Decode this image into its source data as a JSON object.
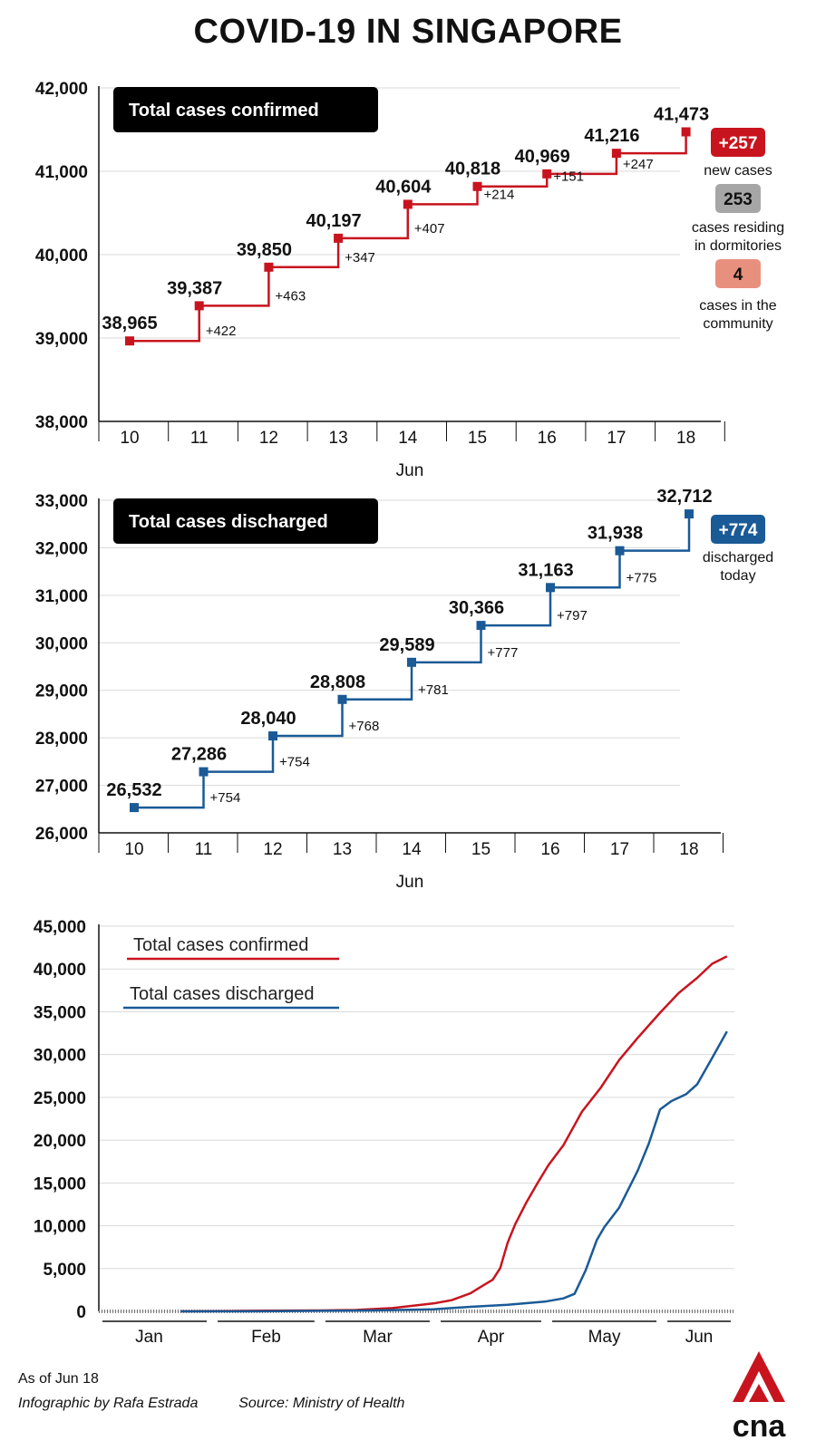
{
  "title": "COVID-19 IN SINGAPORE",
  "colors": {
    "confirmed": "#c8141e",
    "discharged": "#1a5a96",
    "community_badge": "#e8907e",
    "dorm_badge": "#a6a6a6"
  },
  "chart_data": [
    {
      "type": "line",
      "step": true,
      "title": "Total cases confirmed",
      "xlabel": "Jun",
      "categories": [
        "10",
        "11",
        "12",
        "13",
        "14",
        "15",
        "16",
        "17",
        "18"
      ],
      "values": [
        38965,
        39387,
        39850,
        40197,
        40604,
        40818,
        40969,
        41216,
        41473
      ],
      "value_labels": [
        "38,965",
        "39,387",
        "39,850",
        "40,197",
        "40,604",
        "40,818",
        "40,969",
        "41,216",
        "41,473"
      ],
      "increments": [
        "+422",
        "+463",
        "+347",
        "+407",
        "+214",
        "+151",
        "+247"
      ],
      "ylim": [
        38000,
        42000
      ],
      "yticks": [
        38000,
        39000,
        40000,
        41000,
        42000
      ],
      "ytick_labels": [
        "38,000",
        "39,000",
        "40,000",
        "41,000",
        "42,000"
      ],
      "annotations": [
        {
          "badge": "+257",
          "text": "new cases"
        },
        {
          "badge": "253",
          "text": "cases residing in dormitories"
        },
        {
          "badge": "4",
          "text": "cases in the community"
        }
      ]
    },
    {
      "type": "line",
      "step": true,
      "title": "Total cases discharged",
      "xlabel": "Jun",
      "categories": [
        "10",
        "11",
        "12",
        "13",
        "14",
        "15",
        "16",
        "17",
        "18"
      ],
      "values": [
        26532,
        27286,
        28040,
        28808,
        29589,
        30366,
        31163,
        31938,
        32712
      ],
      "value_labels": [
        "26,532",
        "27,286",
        "28,040",
        "28,808",
        "29,589",
        "30,366",
        "31,163",
        "31,938",
        "32,712"
      ],
      "increments": [
        "+754",
        "+754",
        "+768",
        "+781",
        "+777",
        "+797",
        "+775"
      ],
      "ylim": [
        26000,
        33000
      ],
      "yticks": [
        26000,
        27000,
        28000,
        29000,
        30000,
        31000,
        32000,
        33000
      ],
      "ytick_labels": [
        "26,000",
        "27,000",
        "28,000",
        "29,000",
        "30,000",
        "31,000",
        "32,000",
        "33,000"
      ],
      "annotations": [
        {
          "badge": "+774",
          "text": "discharged today"
        }
      ]
    },
    {
      "type": "line",
      "categories": [
        "Jan",
        "Feb",
        "Mar",
        "Apr",
        "May",
        "Jun"
      ],
      "ylim": [
        0,
        45000
      ],
      "yticks": [
        0,
        5000,
        10000,
        15000,
        20000,
        25000,
        30000,
        35000,
        40000,
        45000
      ],
      "ytick_labels": [
        "0",
        "5,000",
        "10,000",
        "15,000",
        "20,000",
        "25,000",
        "30,000",
        "35,000",
        "40,000",
        "45,000"
      ],
      "series": [
        {
          "name": "Total cases confirmed",
          "points": [
            [
              "2020-01-23",
              1
            ],
            [
              "2020-02-01",
              18
            ],
            [
              "2020-02-15",
              72
            ],
            [
              "2020-03-01",
              106
            ],
            [
              "2020-03-10",
              160
            ],
            [
              "2020-03-20",
              385
            ],
            [
              "2020-03-31",
              926
            ],
            [
              "2020-04-05",
              1309
            ],
            [
              "2020-04-10",
              2108
            ],
            [
              "2020-04-13",
              2918
            ],
            [
              "2020-04-16",
              3699
            ],
            [
              "2020-04-18",
              5050
            ],
            [
              "2020-04-20",
              8014
            ],
            [
              "2020-04-22",
              10141
            ],
            [
              "2020-04-25",
              12693
            ],
            [
              "2020-04-28",
              14951
            ],
            [
              "2020-05-01",
              17101
            ],
            [
              "2020-05-05",
              19410
            ],
            [
              "2020-05-10",
              23336
            ],
            [
              "2020-05-15",
              26098
            ],
            [
              "2020-05-20",
              29364
            ],
            [
              "2020-05-25",
              31960
            ],
            [
              "2020-05-31",
              34884
            ],
            [
              "2020-06-05",
              37183
            ],
            [
              "2020-06-10",
              38965
            ],
            [
              "2020-06-14",
              40604
            ],
            [
              "2020-06-18",
              41473
            ]
          ]
        },
        {
          "name": "Total cases discharged",
          "points": [
            [
              "2020-01-23",
              0
            ],
            [
              "2020-02-15",
              10
            ],
            [
              "2020-03-01",
              62
            ],
            [
              "2020-03-15",
              105
            ],
            [
              "2020-03-31",
              240
            ],
            [
              "2020-04-10",
              528
            ],
            [
              "2020-04-20",
              768
            ],
            [
              "2020-04-30",
              1128
            ],
            [
              "2020-05-05",
              1512
            ],
            [
              "2020-05-08",
              2040
            ],
            [
              "2020-05-11",
              4809
            ],
            [
              "2020-05-14",
              8342
            ],
            [
              "2020-05-16",
              9835
            ],
            [
              "2020-05-20",
              12117
            ],
            [
              "2020-05-25",
              16444
            ],
            [
              "2020-05-28",
              19631
            ],
            [
              "2020-05-31",
              23582
            ],
            [
              "2020-06-03",
              24559
            ],
            [
              "2020-06-07",
              25368
            ],
            [
              "2020-06-10",
              26532
            ],
            [
              "2020-06-14",
              29589
            ],
            [
              "2020-06-18",
              32712
            ]
          ]
        }
      ]
    }
  ],
  "footer": {
    "as_of": "As of Jun 18",
    "credit": "Infographic by Rafa Estrada",
    "source": "Source: Ministry of Health"
  }
}
